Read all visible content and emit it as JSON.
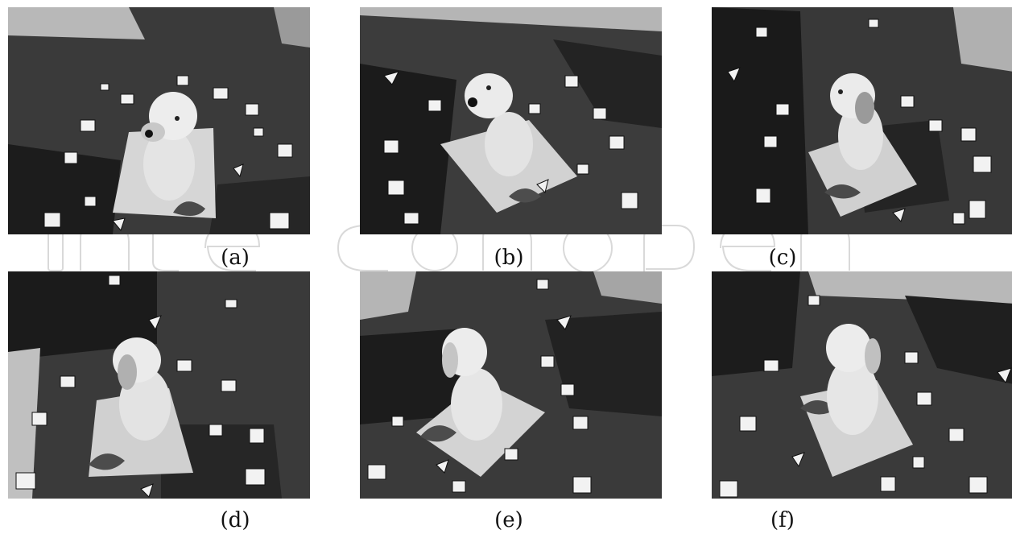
{
  "figure": {
    "panels": [
      {
        "id": "a",
        "caption": "(a)",
        "subject": "dog figurine on patterned base, front view"
      },
      {
        "id": "b",
        "caption": "(b)",
        "subject": "dog figurine on patterned base, front-left view"
      },
      {
        "id": "c",
        "caption": "(c)",
        "subject": "dog figurine on patterned base, side view"
      },
      {
        "id": "d",
        "caption": "(d)",
        "subject": "dog figurine on patterned base, rear-side view"
      },
      {
        "id": "e",
        "caption": "(e)",
        "subject": "dog figurine on patterned base, rear view"
      },
      {
        "id": "f",
        "caption": "(f)",
        "subject": "dog figurine on patterned base, rear-right view"
      }
    ],
    "watermark_color": "#d9d9d9"
  }
}
